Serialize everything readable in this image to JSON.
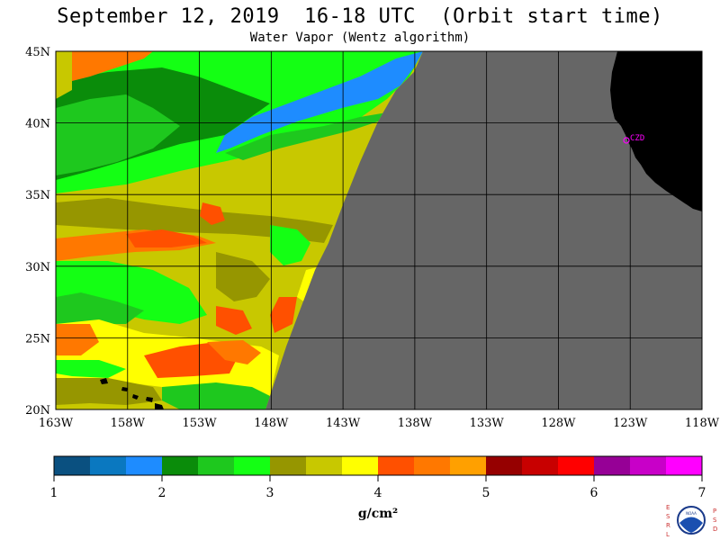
{
  "header": {
    "title": "September 12, 2019  16-18 UTC  (Orbit start time)",
    "subtitle": "Water Vapor (Wentz algorithm)"
  },
  "map": {
    "lon_range": [
      -163,
      -118
    ],
    "lat_range": [
      20,
      45
    ],
    "lat_ticks": [
      {
        "value": 45,
        "label": "45N"
      },
      {
        "value": 40,
        "label": "40N"
      },
      {
        "value": 35,
        "label": "35N"
      },
      {
        "value": 30,
        "label": "30N"
      },
      {
        "value": 25,
        "label": "25N"
      },
      {
        "value": 20,
        "label": "20N"
      }
    ],
    "lon_ticks": [
      {
        "value": -163,
        "label": "163W"
      },
      {
        "value": -158,
        "label": "158W"
      },
      {
        "value": -153,
        "label": "153W"
      },
      {
        "value": -148,
        "label": "148W"
      },
      {
        "value": -143,
        "label": "143W"
      },
      {
        "value": -138,
        "label": "138W"
      },
      {
        "value": -133,
        "label": "133W"
      },
      {
        "value": -128,
        "label": "128W"
      },
      {
        "value": -123,
        "label": "123W"
      },
      {
        "value": -118,
        "label": "118W"
      }
    ],
    "station_label": "CZD",
    "colors": {
      "no_data": "#666666",
      "land": "#000000",
      "station": "#ff00ff"
    }
  },
  "colorbar": {
    "colors": [
      "#0a5080",
      "#0a78c0",
      "#1e8cff",
      "#0a8c0a",
      "#1ec81e",
      "#14ff14",
      "#969600",
      "#c8c800",
      "#ffff00",
      "#ff5000",
      "#ff7800",
      "#ffa000",
      "#960000",
      "#c80000",
      "#ff0000",
      "#960096",
      "#c800c8",
      "#ff00ff"
    ],
    "ticks": [
      "1",
      "2",
      "3",
      "4",
      "5",
      "6",
      "7"
    ],
    "units": "g/cm²",
    "range": [
      1,
      7
    ]
  },
  "logo": {
    "letters_left": [
      "E",
      "S",
      "R",
      "L"
    ],
    "letters_right": [
      "P",
      "S",
      "D"
    ],
    "text": "NOAA"
  }
}
